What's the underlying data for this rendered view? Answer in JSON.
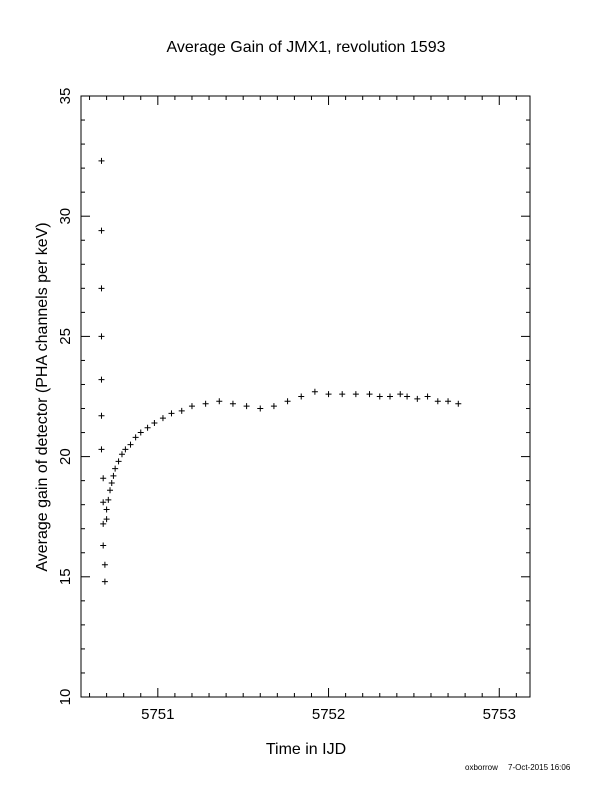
{
  "chart_data": {
    "type": "scatter",
    "title": "Average Gain of JMX1, revolution 1593",
    "xlabel": "Time in IJD",
    "ylabel": "Average gain of detector (PHA channels per keV)",
    "xlim": [
      5750.55,
      5753.18
    ],
    "ylim": [
      10,
      35
    ],
    "xticks": [
      5751,
      5752,
      5753
    ],
    "yticks": [
      10,
      15,
      20,
      25,
      30,
      35
    ],
    "marker": "plus",
    "grid": false,
    "x": [
      5750.67,
      5750.67,
      5750.67,
      5750.67,
      5750.67,
      5750.67,
      5750.67,
      5750.68,
      5750.68,
      5750.68,
      5750.68,
      5750.69,
      5750.69,
      5750.7,
      5750.7,
      5750.71,
      5750.72,
      5750.73,
      5750.74,
      5750.75,
      5750.77,
      5750.79,
      5750.81,
      5750.84,
      5750.87,
      5750.9,
      5750.94,
      5750.98,
      5751.03,
      5751.08,
      5751.14,
      5751.2,
      5751.28,
      5751.36,
      5751.44,
      5751.52,
      5751.6,
      5751.68,
      5751.76,
      5751.84,
      5751.92,
      5752.0,
      5752.08,
      5752.16,
      5752.24,
      5752.3,
      5752.36,
      5752.42,
      5752.46,
      5752.52,
      5752.58,
      5752.64,
      5752.7,
      5752.76
    ],
    "y": [
      32.3,
      29.4,
      27.0,
      25.0,
      23.2,
      21.7,
      20.3,
      19.1,
      18.1,
      17.2,
      16.3,
      15.5,
      14.8,
      17.4,
      17.8,
      18.2,
      18.6,
      18.9,
      19.2,
      19.5,
      19.8,
      20.1,
      20.3,
      20.5,
      20.8,
      21.0,
      21.2,
      21.4,
      21.6,
      21.8,
      21.9,
      22.1,
      22.2,
      22.3,
      22.2,
      22.1,
      22.0,
      22.1,
      22.3,
      22.5,
      22.7,
      22.6,
      22.6,
      22.6,
      22.6,
      22.5,
      22.5,
      22.6,
      22.5,
      22.4,
      22.5,
      22.3,
      22.3,
      22.2
    ]
  },
  "footer": {
    "author": "oxborrow",
    "timestamp": "7-Oct-2015 16:06"
  }
}
